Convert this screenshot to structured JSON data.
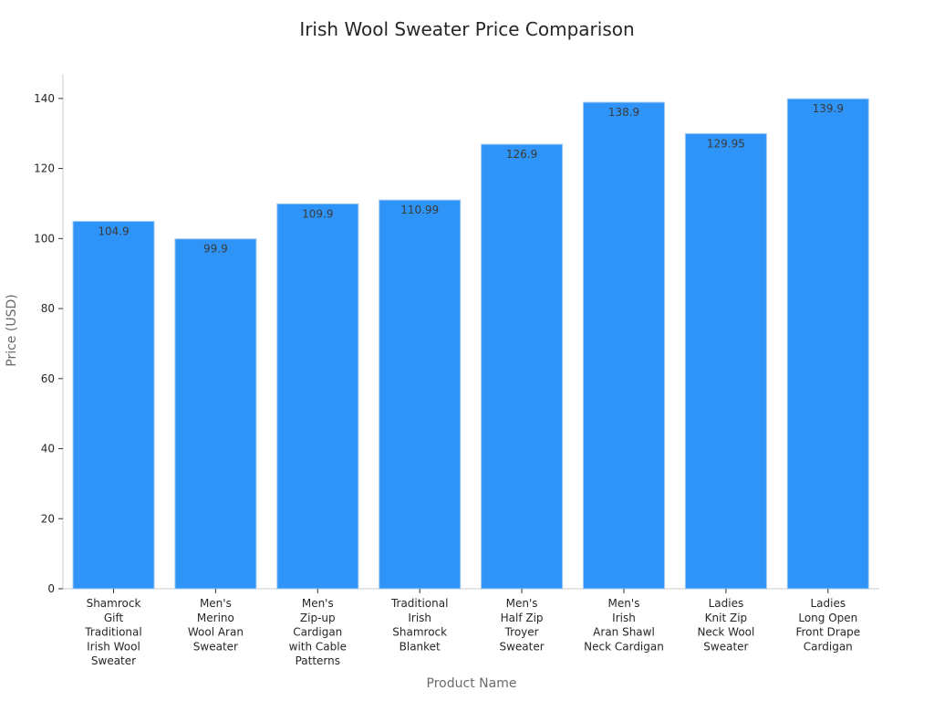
{
  "chart_data": {
    "type": "bar",
    "title": "Irish Wool Sweater Price Comparison",
    "xlabel": "Product Name",
    "ylabel": "Price (USD)",
    "ylim": [
      0,
      147
    ],
    "yticks": [
      0,
      20,
      40,
      60,
      80,
      100,
      120,
      140
    ],
    "categories": [
      [
        "Shamrock",
        "Gift",
        "Traditional",
        "Irish Wool",
        "Sweater"
      ],
      [
        "Men's",
        "Merino",
        "Wool Aran",
        "Sweater"
      ],
      [
        "Men's",
        "Zip-up",
        "Cardigan",
        "with Cable",
        "Patterns"
      ],
      [
        "Traditional",
        "Irish",
        "Shamrock",
        "Blanket"
      ],
      [
        "Men's",
        "Half Zip",
        "Troyer",
        "Sweater"
      ],
      [
        "Men's",
        "Irish",
        "Aran Shawl",
        "Neck Cardigan"
      ],
      [
        "Ladies",
        "Knit Zip",
        "Neck Wool",
        "Sweater"
      ],
      [
        "Ladies",
        "Long Open",
        "Front Drape",
        "Cardigan"
      ]
    ],
    "values": [
      104.9,
      99.9,
      109.9,
      110.99,
      126.9,
      138.9,
      129.95,
      139.9
    ],
    "value_labels": [
      "104.9",
      "99.9",
      "109.9",
      "110.99",
      "126.9",
      "138.9",
      "129.95",
      "139.9"
    ],
    "bar_color": "#2f94f7",
    "bar_edge_color": "#9fc8f0",
    "grid": false,
    "legend": "none"
  }
}
